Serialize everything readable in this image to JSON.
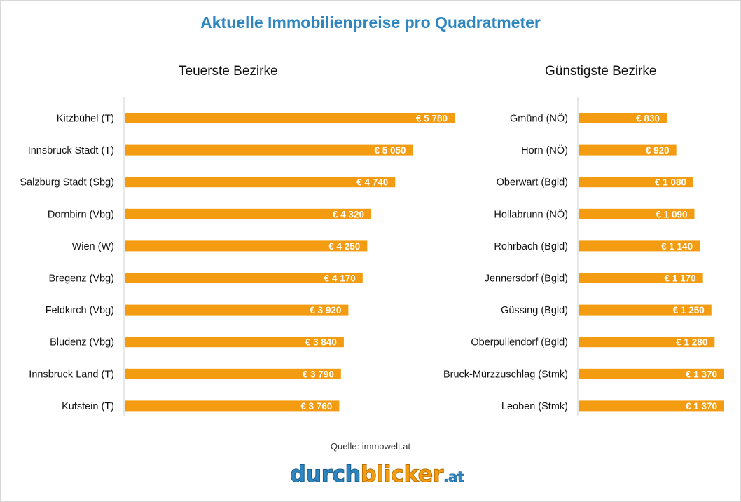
{
  "header": {
    "title": "Aktuelle Immobilienpreise pro Quadratmeter"
  },
  "chart_data": [
    {
      "type": "bar",
      "orientation": "horizontal",
      "title": "Teuerste Bezirke",
      "categories": [
        "Kitzbühel (T)",
        "Innsbruck Stadt (T)",
        "Salzburg Stadt (Sbg)",
        "Dornbirn (Vbg)",
        "Wien (W)",
        "Bregenz (Vbg)",
        "Feldkirch (Vbg)",
        "Bludenz (Vbg)",
        "Innsbruck Land (T)",
        "Kufstein (T)"
      ],
      "values": [
        5780,
        5050,
        4740,
        4320,
        4250,
        4170,
        3920,
        3840,
        3790,
        3760
      ],
      "value_labels": [
        "€ 5 780",
        "€ 5 050",
        "€ 4 740",
        "€ 4 320",
        "€ 4 250",
        "€ 4 170",
        "€ 3 920",
        "€ 3 840",
        "€ 3 790",
        "€ 3 760"
      ],
      "xlim": [
        0,
        5780
      ],
      "bar_color": "#f39c12",
      "grid": false
    },
    {
      "type": "bar",
      "orientation": "horizontal",
      "title": "Günstigste Bezirke",
      "categories": [
        "Gmünd (NÖ)",
        "Horn (NÖ)",
        "Oberwart (Bgld)",
        "Hollabrunn (NÖ)",
        "Rohrbach (Bgld)",
        "Jennersdorf (Bgld)",
        "Güssing (Bgld)",
        "Oberpullendorf (Bgld)",
        "Bruck-Mürzzuschlag (Stmk)",
        "Leoben (Stmk)"
      ],
      "values": [
        830,
        920,
        1080,
        1090,
        1140,
        1170,
        1250,
        1280,
        1370,
        1370
      ],
      "value_labels": [
        "€  830",
        "€  920",
        "€ 1 080",
        "€ 1 090",
        "€ 1 140",
        "€ 1 170",
        "€ 1 250",
        "€ 1 280",
        "€ 1 370",
        "€ 1 370"
      ],
      "xlim": [
        0,
        1370
      ],
      "bar_color": "#f39c12",
      "grid": false
    }
  ],
  "footer": {
    "source": "Quelle: immowelt.at",
    "logo_part1": "durch",
    "logo_part2": "blicker",
    "logo_part3": ".at"
  }
}
